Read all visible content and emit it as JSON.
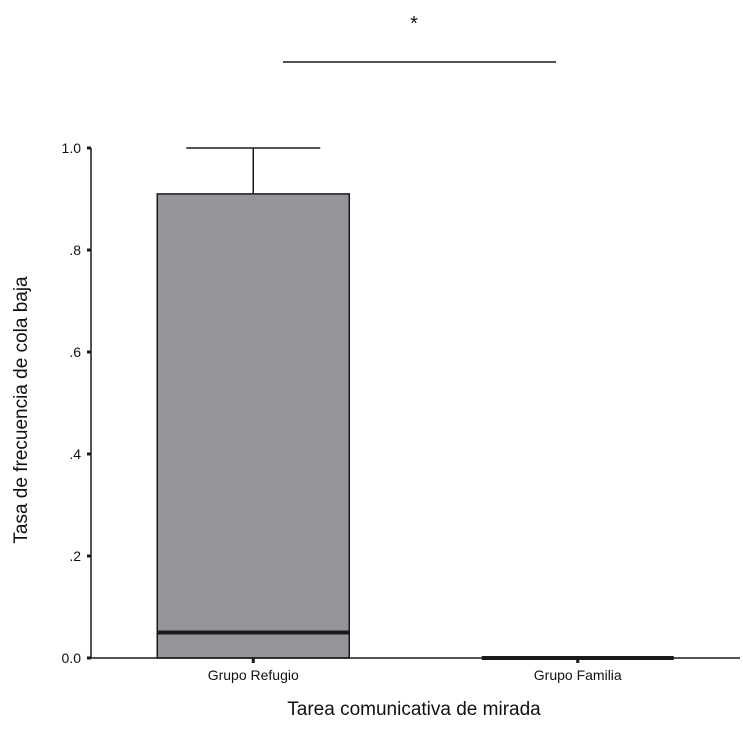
{
  "chart_data": {
    "type": "box",
    "title": "",
    "xlabel": "Tarea comunicativa de mirada",
    "ylabel": "Tasa de frecuencia de cola baja",
    "categories": [
      "Grupo Refugio",
      "Grupo Familia"
    ],
    "yticks": [
      {
        "value": 0.0,
        "label": "0.0"
      },
      {
        "value": 0.2,
        "label": ".2"
      },
      {
        "value": 0.4,
        "label": ".4"
      },
      {
        "value": 0.6,
        "label": ".6"
      },
      {
        "value": 0.8,
        "label": ".8"
      },
      {
        "value": 1.0,
        "label": "1.0"
      }
    ],
    "ylim": [
      0,
      1.0
    ],
    "grid": false,
    "boxes": [
      {
        "category": "Grupo Refugio",
        "min": 0.0,
        "q1": 0.0,
        "median": 0.05,
        "q3": 0.91,
        "max": 1.0
      },
      {
        "category": "Grupo Familia",
        "min": 0.0,
        "q1": 0.0,
        "median": 0.0,
        "q3": 0.0,
        "max": 0.0
      }
    ],
    "annotations": [
      {
        "text": "*",
        "between": [
          "Grupo Refugio",
          "Grupo Familia"
        ]
      }
    ],
    "colors": {
      "box_fill": "#939598",
      "stroke": "#1a1a1a",
      "median": "#1a1a1a"
    }
  }
}
